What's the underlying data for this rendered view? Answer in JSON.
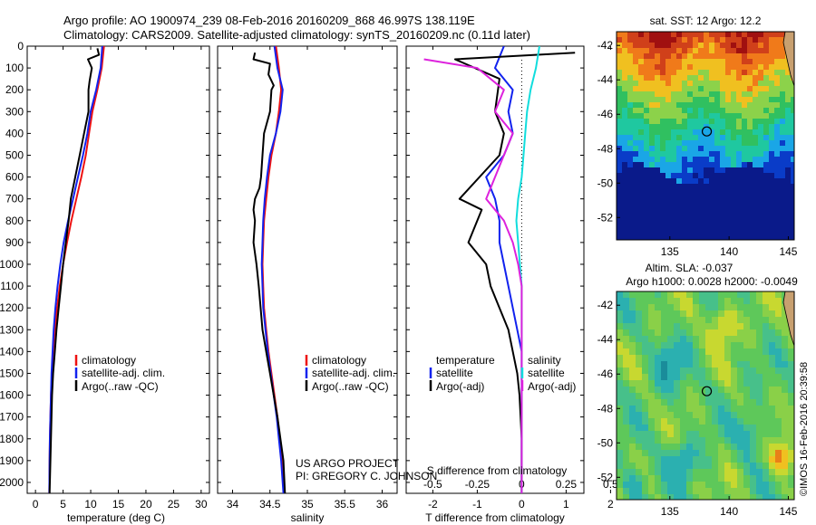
{
  "header": {
    "line1": "Argo profile: AO 1900974_239 08-Feb-2016 20160209_868 46.997S 138.119E",
    "line2": "Climatology: CARS2009. Satellite-adjusted climatology: synTS_20160209.nc (0.11d later)"
  },
  "credit": {
    "line1": "US ARGO PROJECT",
    "line2": "PI: GREGORY C. JOHNSON"
  },
  "watermark": "©IMOS 16-Feb-2016 20:39:58",
  "colors": {
    "climatology": "#ee1111",
    "satellite": "#1122ee",
    "argo": "#000000",
    "sal_satellite": "#11dddd",
    "sal_argo": "#dd22dd",
    "land": "#c8a070",
    "marker": "#000000"
  },
  "chart_data": [
    {
      "type": "line",
      "id": "temperature",
      "xlabel": "temperature (deg C)",
      "ylabel": "",
      "xlim": [
        -1.5,
        31.5
      ],
      "ylim": [
        2050,
        0
      ],
      "xticks": [
        "0",
        "5",
        "10",
        "15",
        "20",
        "25",
        "30"
      ],
      "yticks": [
        "0",
        "100",
        "200",
        "300",
        "400",
        "500",
        "600",
        "700",
        "800",
        "900",
        "1000",
        "1100",
        "1200",
        "1300",
        "1400",
        "1500",
        "1600",
        "1700",
        "1800",
        "1900",
        "2000"
      ],
      "legend": [
        "climatology",
        "satellite-adj. clim.",
        "Argo(..raw -QC)"
      ],
      "series": [
        {
          "name": "climatology",
          "color": "#ee1111",
          "x": [
            12.4,
            12.0,
            11.2,
            10.3,
            9.7,
            9.1,
            8.3,
            7.4,
            6.5,
            5.7,
            5.0,
            4.4,
            3.9,
            3.5,
            3.2,
            3.0,
            2.8,
            2.7,
            2.6,
            2.55,
            2.5
          ],
          "y": [
            0,
            100,
            200,
            300,
            400,
            500,
            600,
            700,
            800,
            900,
            1000,
            1100,
            1200,
            1300,
            1400,
            1500,
            1600,
            1700,
            1800,
            1900,
            2050
          ]
        },
        {
          "name": "satellite-adj. clim.",
          "color": "#1122ee",
          "x": [
            12.1,
            11.8,
            11.0,
            10.0,
            9.4,
            8.6,
            7.7,
            6.8,
            5.9,
            5.1,
            4.5,
            4.0,
            3.6,
            3.3,
            3.1,
            2.9,
            2.8,
            2.7,
            2.6,
            2.55,
            2.5
          ],
          "y": [
            0,
            100,
            200,
            300,
            400,
            500,
            600,
            700,
            800,
            900,
            1000,
            1100,
            1200,
            1300,
            1400,
            1500,
            1600,
            1700,
            1800,
            1900,
            2050
          ]
        },
        {
          "name": "Argo(..raw -QC)",
          "color": "#000000",
          "x": [
            11.2,
            11.5,
            9.5,
            10.2,
            9.8,
            9.6,
            9.6,
            8.8,
            8.0,
            7.2,
            6.4,
            6.0,
            5.5,
            5.0,
            4.6,
            4.2,
            3.8,
            3.5,
            3.2,
            3.0,
            2.9,
            2.8,
            2.7,
            2.6,
            2.55
          ],
          "y": [
            10,
            40,
            60,
            100,
            160,
            200,
            300,
            400,
            500,
            600,
            700,
            800,
            900,
            1000,
            1100,
            1200,
            1300,
            1400,
            1500,
            1600,
            1700,
            1800,
            1900,
            2000,
            2050
          ]
        }
      ]
    },
    {
      "type": "line",
      "id": "salinity",
      "xlabel": "salinity",
      "ylabel": "",
      "xlim": [
        33.8,
        36.2
      ],
      "ylim": [
        2050,
        0
      ],
      "xticks": [
        "34",
        "34.5",
        "35",
        "35.5",
        "36"
      ],
      "legend": [
        "climatology",
        "satellite-adj. clim.",
        "Argo(..raw -QC)"
      ],
      "series": [
        {
          "name": "climatology",
          "color": "#ee1111",
          "x": [
            34.58,
            34.62,
            34.65,
            34.62,
            34.58,
            34.52,
            34.48,
            34.45,
            34.42,
            34.41,
            34.4,
            34.41,
            34.42,
            34.45,
            34.48,
            34.52,
            34.56,
            34.6,
            34.63,
            34.66,
            34.69
          ],
          "y": [
            0,
            100,
            200,
            300,
            400,
            500,
            600,
            700,
            800,
            900,
            1000,
            1100,
            1200,
            1300,
            1400,
            1500,
            1600,
            1700,
            1800,
            1900,
            2050
          ]
        },
        {
          "name": "satellite-adj. clim.",
          "color": "#1122ee",
          "x": [
            34.56,
            34.6,
            34.67,
            34.64,
            34.58,
            34.5,
            34.46,
            34.43,
            34.41,
            34.4,
            34.39,
            34.4,
            34.41,
            34.44,
            34.47,
            34.51,
            34.55,
            34.59,
            34.62,
            34.65,
            34.68
          ],
          "y": [
            0,
            100,
            200,
            300,
            400,
            500,
            600,
            700,
            800,
            900,
            1000,
            1100,
            1200,
            1300,
            1400,
            1500,
            1600,
            1700,
            1800,
            1900,
            2050
          ]
        },
        {
          "name": "Argo(..raw -QC)",
          "color": "#000000",
          "x": [
            34.3,
            34.28,
            34.5,
            34.48,
            34.55,
            34.52,
            34.5,
            34.42,
            34.4,
            34.38,
            34.36,
            34.3,
            34.28,
            34.3,
            34.28,
            34.32,
            34.35,
            34.4,
            34.45,
            34.5,
            34.55,
            34.6,
            34.64,
            34.68,
            34.7
          ],
          "y": [
            30,
            60,
            80,
            130,
            180,
            200,
            300,
            400,
            500,
            600,
            650,
            700,
            750,
            800,
            900,
            1000,
            1100,
            1300,
            1400,
            1500,
            1600,
            1700,
            1800,
            1900,
            2050
          ]
        }
      ]
    },
    {
      "type": "line",
      "id": "differences",
      "xlabel": "T difference from climatology",
      "xlabel_top": "S difference from climatology",
      "xlim": [
        -2.6,
        1.4
      ],
      "ylim": [
        2050,
        0
      ],
      "xticks": [
        "-2",
        "-1",
        "0",
        "1",
        "2"
      ],
      "xticks_sal": [
        "-0.5",
        "-0.25",
        "0",
        "0.25",
        "0.5"
      ],
      "legend_temperature_title": "temperature",
      "legend_salinity_title": "salinity",
      "legend_temperature": [
        "satellite",
        "Argo(-adj)"
      ],
      "legend_salinity": [
        "satellite",
        "Argo(-adj)"
      ],
      "series": [
        {
          "name": "satellite",
          "group": "temperature",
          "color": "#1122ee",
          "x": [
            -0.4,
            -0.6,
            -0.2,
            -0.3,
            -0.2,
            -0.4,
            -0.8,
            -0.6,
            -0.5,
            -0.5,
            -0.4,
            -0.3,
            -0.2,
            -0.1,
            0,
            0,
            0,
            0,
            0,
            0,
            0
          ],
          "y": [
            0,
            100,
            200,
            300,
            400,
            500,
            600,
            700,
            800,
            900,
            1000,
            1100,
            1200,
            1300,
            1400,
            1500,
            1600,
            1700,
            1800,
            1900,
            2050
          ]
        },
        {
          "name": "Argo(-adj)",
          "group": "temperature",
          "color": "#000000",
          "x": [
            1.2,
            -1.5,
            -0.5,
            -0.6,
            -0.4,
            -0.5,
            -1.4,
            -0.9,
            -1.2,
            -0.8,
            -0.7,
            -0.5,
            -0.3,
            -0.2,
            -0.1,
            -0.05,
            0,
            0,
            0
          ],
          "y": [
            30,
            60,
            150,
            300,
            400,
            500,
            700,
            750,
            900,
            1000,
            1100,
            1200,
            1300,
            1400,
            1500,
            1600,
            1800,
            1900,
            2050
          ]
        },
        {
          "name": "satellite",
          "group": "salinity",
          "color": "#11dddd",
          "x": [
            0.1,
            0.08,
            0.05,
            0.03,
            0.02,
            0.01,
            0,
            -0.02,
            -0.03,
            -0.02,
            -0.01,
            0,
            0,
            0,
            0,
            0,
            0,
            0,
            0,
            0,
            0
          ],
          "y": [
            0,
            100,
            200,
            300,
            400,
            500,
            600,
            700,
            800,
            900,
            1000,
            1100,
            1200,
            1300,
            1400,
            1500,
            1600,
            1700,
            1800,
            1900,
            2050
          ]
        },
        {
          "name": "Argo(-adj)",
          "group": "salinity",
          "color": "#dd22dd",
          "x": [
            -0.55,
            -0.25,
            -0.1,
            -0.15,
            -0.05,
            -0.1,
            -0.2,
            -0.1,
            -0.05,
            -0.02,
            0,
            0,
            0,
            0,
            0,
            0,
            0,
            0,
            0
          ],
          "y": [
            60,
            100,
            200,
            300,
            400,
            500,
            700,
            800,
            900,
            1000,
            1100,
            1200,
            1300,
            1400,
            1500,
            1600,
            1800,
            1900,
            2050
          ]
        }
      ]
    },
    {
      "type": "heatmap",
      "id": "sst-map",
      "title": "sat. SST: 12 Argo: 12.2",
      "xlim": [
        130.5,
        145.5
      ],
      "ylim": [
        -53.3,
        -41.2
      ],
      "xticks": [
        "135",
        "140",
        "145"
      ],
      "yticks": [
        "-42",
        "-44",
        "-46",
        "-48",
        "-50",
        "-52"
      ],
      "marker": {
        "lon": 138.119,
        "lat": -46.997
      }
    },
    {
      "type": "heatmap",
      "id": "sla-map",
      "title": "Altim. SLA: -0.037",
      "subtitle": "Argo h1000: 0.0028 h2000: -0.0049",
      "xlim": [
        130.5,
        145.5
      ],
      "ylim": [
        -53.3,
        -41.2
      ],
      "xticks": [
        "135",
        "140",
        "145"
      ],
      "yticks": [
        "-42",
        "-44",
        "-46",
        "-48",
        "-50",
        "-52"
      ],
      "marker": {
        "lon": 138.119,
        "lat": -46.997
      }
    }
  ]
}
